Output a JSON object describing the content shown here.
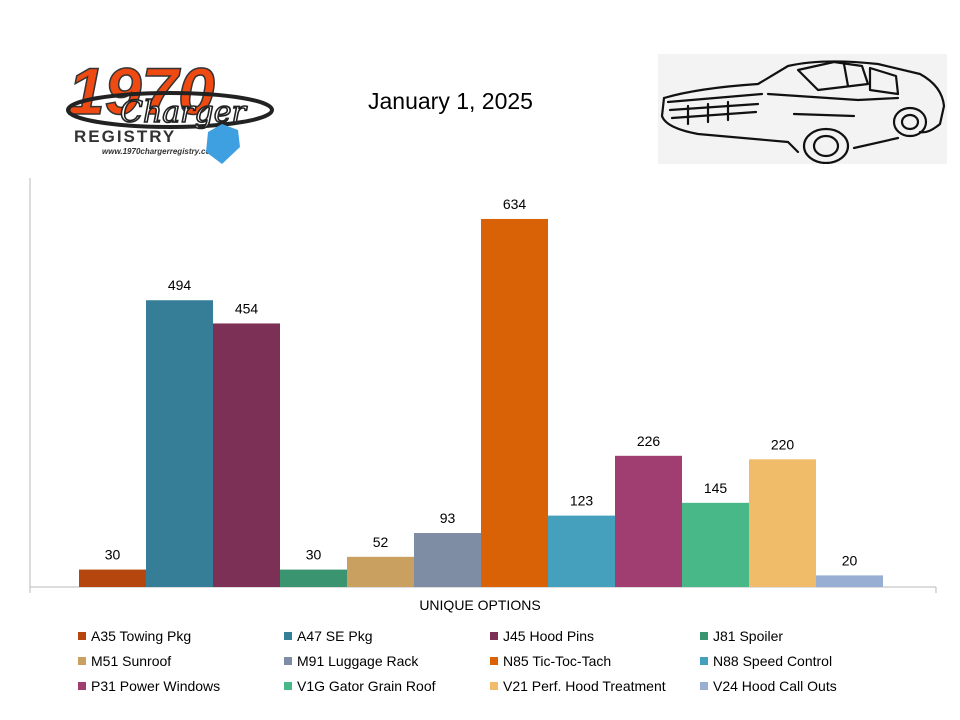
{
  "header": {
    "logo_text": "1970",
    "logo_script": "Charger",
    "logo_registry": "REGISTRY",
    "logo_url": "www.1970chargerregistry.com/",
    "date": "January 1, 2025"
  },
  "chart_data": {
    "type": "bar",
    "title": "January 1, 2025",
    "xlabel": "UNIQUE OPTIONS",
    "ylabel": "",
    "ylim": [
      0,
      700
    ],
    "grid": false,
    "legend_position": "bottom",
    "series": [
      {
        "name": "A35 Towing Pkg",
        "value": 30,
        "color": "#b5460e"
      },
      {
        "name": "A47 SE Pkg",
        "value": 494,
        "color": "#367d98"
      },
      {
        "name": "J45 Hood Pins",
        "value": 454,
        "color": "#7d3056"
      },
      {
        "name": "J81 Spoiler",
        "value": 30,
        "color": "#3a9470"
      },
      {
        "name": "M51 Sunroof",
        "value": 52,
        "color": "#c9a060"
      },
      {
        "name": "M91 Luggage Rack",
        "value": 93,
        "color": "#7e8ca4"
      },
      {
        "name": "N85 Tic-Toc-Tach",
        "value": 634,
        "color": "#da6206"
      },
      {
        "name": "N88 Speed Control",
        "value": 123,
        "color": "#45a0bd"
      },
      {
        "name": "P31 Power Windows",
        "value": 226,
        "color": "#a03e72"
      },
      {
        "name": "V1G Gator Grain Roof",
        "value": 145,
        "color": "#48b888"
      },
      {
        "name": "V21 Perf. Hood Treatment",
        "value": 220,
        "color": "#f1bc6a"
      },
      {
        "name": "V24 Hood Call Outs",
        "value": 20,
        "color": "#98aed2"
      }
    ]
  }
}
